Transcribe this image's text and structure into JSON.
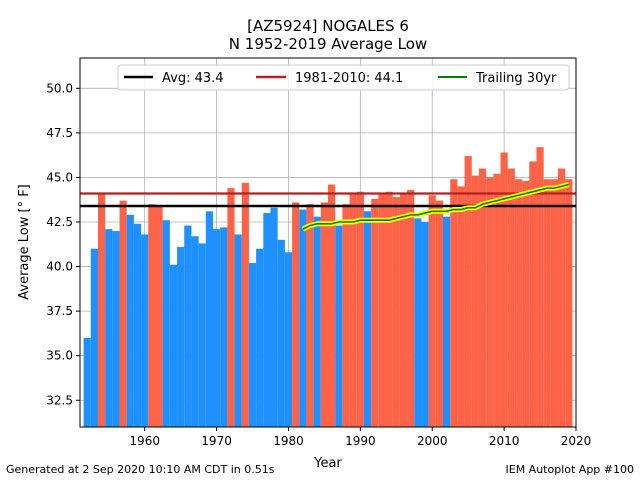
{
  "chart_data": {
    "type": "bar",
    "title": "[AZ5924] NOGALES 6",
    "subtitle": "N 1952-2019 Average Low",
    "xlabel": "Year",
    "ylabel": "Average Low [° F]",
    "xlim": [
      1951,
      2020
    ],
    "ylim": [
      31.0,
      51.7
    ],
    "xticks": [
      1960,
      1970,
      1980,
      1990,
      2000,
      2010,
      2020
    ],
    "yticks": [
      32.5,
      35.0,
      37.5,
      40.0,
      42.5,
      45.0,
      47.5,
      50.0
    ],
    "grid": true,
    "legend_position": "top",
    "colors": {
      "below": "#1e90ff",
      "above": "#ff6347",
      "avg": "#000000",
      "climo": "#b22222",
      "trailing": "#008000",
      "trailing_glow": "#ffff00"
    },
    "years": [
      1952,
      1953,
      1954,
      1955,
      1956,
      1957,
      1958,
      1959,
      1960,
      1961,
      1962,
      1963,
      1964,
      1965,
      1966,
      1967,
      1968,
      1969,
      1970,
      1971,
      1972,
      1973,
      1974,
      1975,
      1976,
      1977,
      1978,
      1979,
      1980,
      1981,
      1982,
      1983,
      1984,
      1985,
      1986,
      1987,
      1988,
      1989,
      1990,
      1991,
      1992,
      1993,
      1994,
      1995,
      1996,
      1997,
      1998,
      1999,
      2000,
      2001,
      2002,
      2003,
      2004,
      2005,
      2006,
      2007,
      2008,
      2009,
      2010,
      2011,
      2012,
      2013,
      2014,
      2015,
      2016,
      2017,
      2018,
      2019
    ],
    "values": [
      36.0,
      41.0,
      44.1,
      42.1,
      42.0,
      43.7,
      42.9,
      42.4,
      41.8,
      43.5,
      43.4,
      42.6,
      40.1,
      41.1,
      42.3,
      41.7,
      41.3,
      43.1,
      42.1,
      42.2,
      44.4,
      41.8,
      44.7,
      40.2,
      41.0,
      43.0,
      43.3,
      41.5,
      40.8,
      43.6,
      43.2,
      43.5,
      42.8,
      43.6,
      44.6,
      42.3,
      43.5,
      44.1,
      44.2,
      43.1,
      43.8,
      44.1,
      44.2,
      43.9,
      44.1,
      44.3,
      42.7,
      42.5,
      44.0,
      43.7,
      42.8,
      44.9,
      44.5,
      46.2,
      45.1,
      45.5,
      45.0,
      45.2,
      46.4,
      45.5,
      44.9,
      44.8,
      45.9,
      46.7,
      44.9,
      44.9,
      45.5,
      44.9
    ],
    "series": [
      {
        "name": "Avg: 43.4",
        "value": 43.4
      },
      {
        "name": "1981-2010: 44.1",
        "value": 44.1
      },
      {
        "name": "Trailing 30yr",
        "x": [
          1982,
          1983,
          1984,
          1985,
          1986,
          1987,
          1988,
          1989,
          1990,
          1991,
          1992,
          1993,
          1994,
          1995,
          1996,
          1997,
          1998,
          1999,
          2000,
          2001,
          2002,
          2003,
          2004,
          2005,
          2006,
          2007,
          2008,
          2009,
          2010,
          2011,
          2012,
          2013,
          2014,
          2015,
          2016,
          2017,
          2018,
          2019
        ],
        "values": [
          42.1,
          42.3,
          42.4,
          42.4,
          42.4,
          42.5,
          42.5,
          42.5,
          42.6,
          42.6,
          42.6,
          42.6,
          42.6,
          42.7,
          42.8,
          42.9,
          42.9,
          43.0,
          43.1,
          43.1,
          43.1,
          43.2,
          43.2,
          43.3,
          43.3,
          43.5,
          43.6,
          43.7,
          43.8,
          43.9,
          44.0,
          44.1,
          44.2,
          44.3,
          44.4,
          44.4,
          44.5,
          44.6
        ]
      }
    ]
  },
  "footer": {
    "left": "Generated at 2 Sep 2020 10:10 AM CDT in 0.51s",
    "right": "IEM Autoplot App #100"
  }
}
